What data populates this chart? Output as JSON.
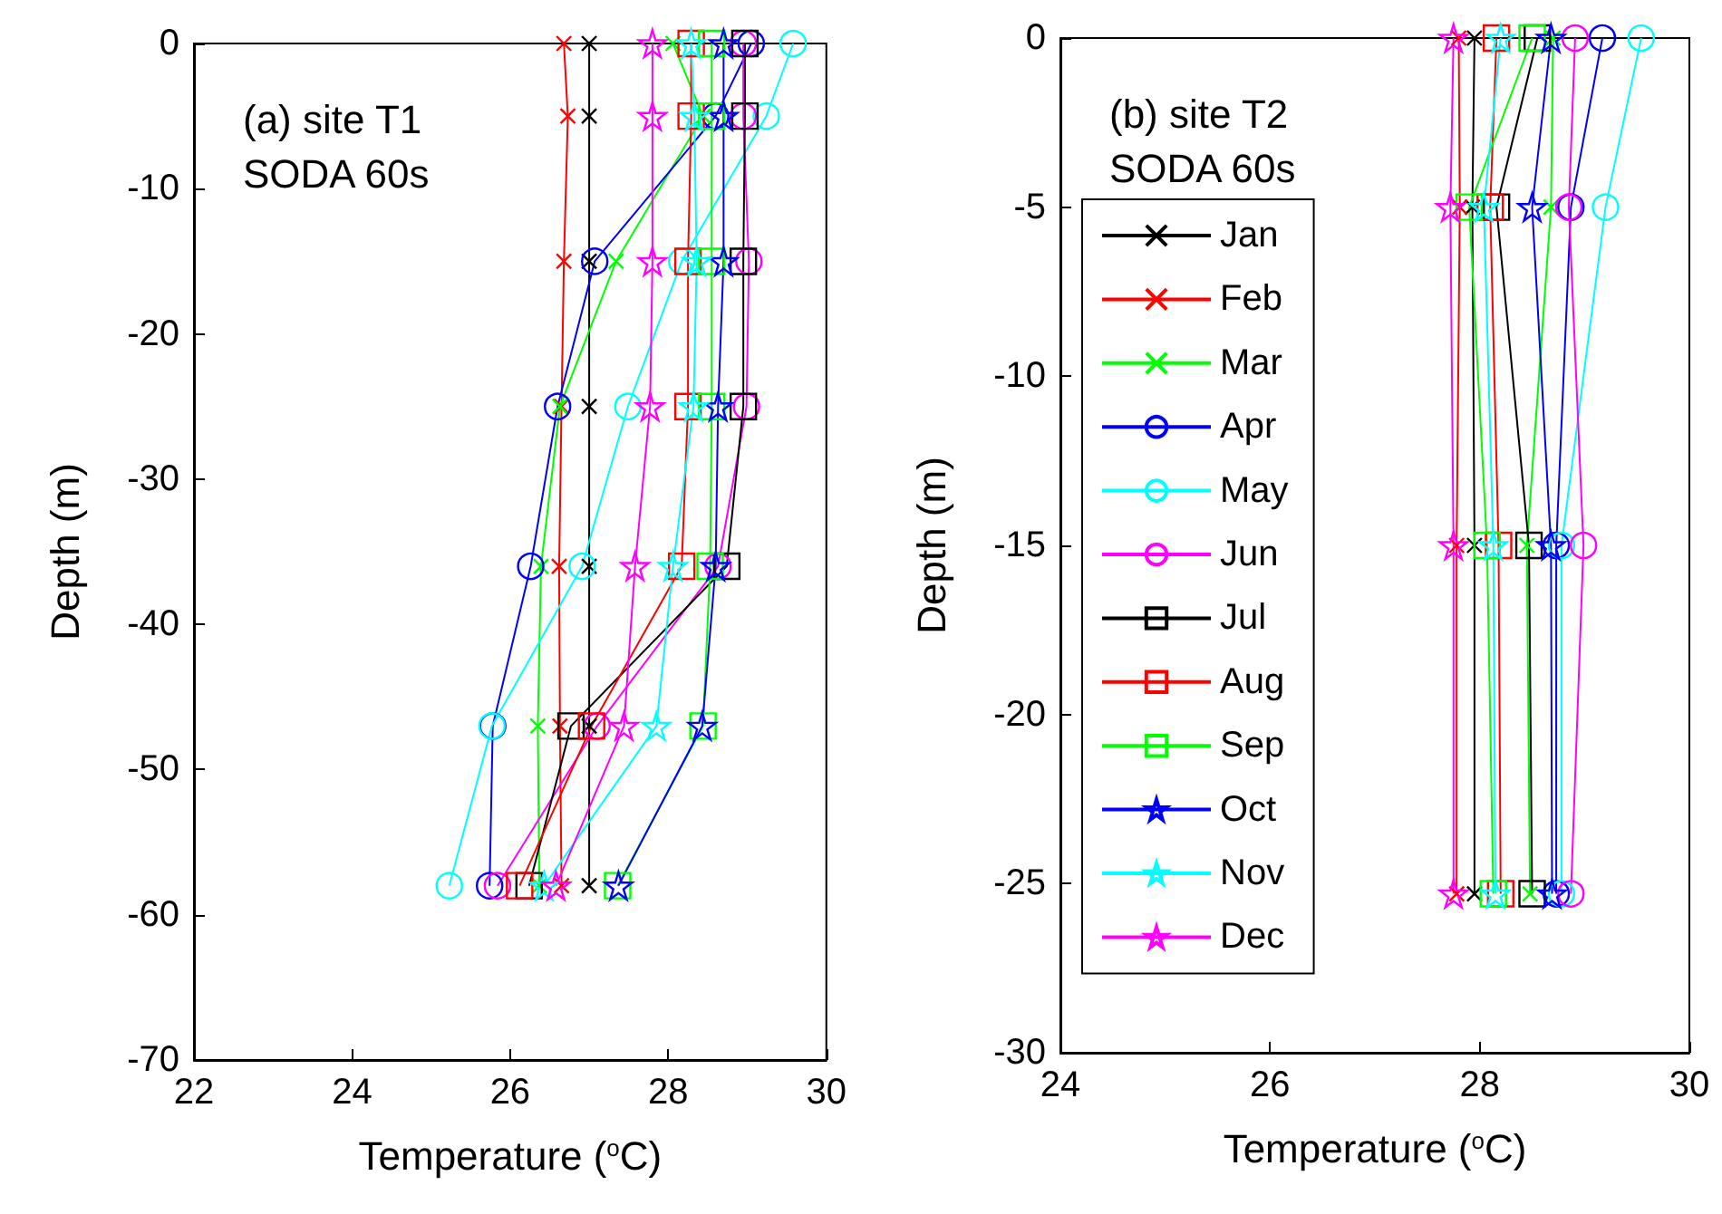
{
  "chart_data": [
    {
      "type": "line",
      "title": "(a) site T1\nSODA 60s",
      "xlabel": "Temperature ($^{o}$C)",
      "ylabel": "Depth (m)",
      "xlim": [
        22,
        30
      ],
      "xticks": [
        22,
        24,
        26,
        28,
        30
      ],
      "ylim": [
        -70,
        0
      ],
      "yticks": [
        0,
        -10,
        -20,
        -30,
        -40,
        -50,
        -60,
        -70
      ],
      "grid": false,
      "legend": false,
      "line_style": "solid",
      "series": [
        {
          "color": "#000000",
          "marker": "cross",
          "x": [
            27.0,
            27.0,
            27.0,
            27.0,
            27.0,
            27.0,
            27.0
          ],
          "values": [
            0,
            -5,
            -15,
            -25,
            -36,
            -47,
            -58
          ]
        },
        {
          "color": "#ff0000",
          "marker": "cross",
          "x": [
            26.68,
            26.73,
            26.68,
            26.65,
            26.62,
            26.63,
            26.65
          ],
          "values": [
            0,
            -5,
            -15,
            -25,
            -36,
            -47,
            -58
          ]
        },
        {
          "color": "#00ff00",
          "marker": "cross",
          "x": [
            28.06,
            28.44,
            27.34,
            26.63,
            26.39,
            26.35,
            26.37
          ],
          "values": [
            0,
            -5,
            -15,
            -25,
            -36,
            -47,
            -58
          ]
        },
        {
          "color": "#0000ff",
          "marker": "circle",
          "x": [
            29.05,
            28.6,
            27.07,
            26.6,
            26.26,
            25.78,
            25.74
          ],
          "values": [
            0,
            -5,
            -15,
            -25,
            -36,
            -47,
            -58
          ]
        },
        {
          "color": "#00ffff",
          "marker": "circle",
          "x": [
            29.58,
            29.24,
            28.17,
            27.49,
            26.91,
            25.77,
            25.23
          ],
          "values": [
            0,
            -5,
            -15,
            -25,
            -36,
            -47,
            -58
          ]
        },
        {
          "color": "#ff00ff",
          "marker": "circle",
          "x": [
            28.95,
            28.95,
            29.02,
            28.99,
            28.63,
            27.1,
            25.84
          ],
          "values": [
            0,
            -5,
            -15,
            -25,
            -36,
            -47,
            -58
          ]
        },
        {
          "color": "#000000",
          "marker": "square",
          "x": [
            28.97,
            28.97,
            28.95,
            28.95,
            28.74,
            26.77,
            26.24
          ],
          "values": [
            0,
            -5,
            -15,
            -25,
            -36,
            -47,
            -58
          ]
        },
        {
          "color": "#ff0000",
          "marker": "square",
          "x": [
            28.29,
            28.29,
            28.25,
            28.25,
            28.17,
            27.03,
            26.12
          ],
          "values": [
            0,
            -5,
            -15,
            -25,
            -36,
            -47,
            -58
          ]
        },
        {
          "color": "#00ff00",
          "marker": "square",
          "x": [
            28.55,
            28.55,
            28.55,
            28.55,
            28.53,
            28.44,
            27.36
          ],
          "values": [
            0,
            -5,
            -15,
            -25,
            -36,
            -47,
            -58
          ]
        },
        {
          "color": "#0000ff",
          "marker": "star",
          "x": [
            28.7,
            28.7,
            28.7,
            28.63,
            28.6,
            28.43,
            27.37
          ],
          "values": [
            0,
            -5,
            -15,
            -25,
            -36,
            -47,
            -58
          ]
        },
        {
          "color": "#00ffff",
          "marker": "star",
          "x": [
            28.29,
            28.33,
            28.36,
            28.32,
            28.06,
            27.85,
            26.43
          ],
          "values": [
            0,
            -5,
            -15,
            -25,
            -36,
            -47,
            -58
          ]
        },
        {
          "color": "#ff00ff",
          "marker": "star",
          "x": [
            27.8,
            27.8,
            27.8,
            27.77,
            27.58,
            27.44,
            26.58
          ],
          "values": [
            0,
            -5,
            -15,
            -25,
            -36,
            -47,
            -58
          ]
        }
      ]
    },
    {
      "type": "line",
      "title": "(b) site T2\nSODA 60s",
      "xlabel": "Temperature ($^{o}$C)",
      "ylabel": "Depth (m)",
      "xlim": [
        24,
        30
      ],
      "xticks": [
        24,
        26,
        28,
        30
      ],
      "ylim": [
        -30,
        0
      ],
      "yticks": [
        0,
        -5,
        -10,
        -15,
        -20,
        -25,
        -30
      ],
      "grid": false,
      "legend": "left",
      "line_style": "solid",
      "series": [
        {
          "name": "Jan",
          "color": "#000000",
          "marker": "cross",
          "x": [
            27.95,
            27.93,
            27.95,
            27.95
          ],
          "values": [
            0,
            -5,
            -15,
            -25.3
          ]
        },
        {
          "name": "Feb",
          "color": "#ff0000",
          "marker": "cross",
          "x": [
            27.8,
            27.81,
            27.78,
            27.78
          ],
          "values": [
            0,
            -5,
            -15,
            -25.3
          ]
        },
        {
          "name": "Mar",
          "color": "#00ff00",
          "marker": "cross",
          "x": [
            28.7,
            28.68,
            28.45,
            28.48
          ],
          "values": [
            0,
            -5,
            -15,
            -25.3
          ]
        },
        {
          "name": "Apr",
          "color": "#0000ff",
          "marker": "circle",
          "x": [
            29.17,
            28.87,
            28.73,
            28.73
          ],
          "values": [
            0,
            -5,
            -15,
            -25.3
          ]
        },
        {
          "name": "May",
          "color": "#00ffff",
          "marker": "circle",
          "x": [
            29.54,
            29.2,
            28.78,
            28.78
          ],
          "values": [
            0,
            -5,
            -15,
            -25.3
          ]
        },
        {
          "name": "Jun",
          "color": "#ff00ff",
          "marker": "circle",
          "x": [
            28.91,
            28.85,
            28.99,
            28.87
          ],
          "values": [
            0,
            -5,
            -15,
            -25.3
          ]
        },
        {
          "name": "Jul",
          "color": "#000000",
          "marker": "square",
          "x": [
            28.55,
            28.16,
            28.47,
            28.5
          ],
          "values": [
            0,
            -5,
            -15,
            -25.3
          ]
        },
        {
          "name": "Aug",
          "color": "#ff0000",
          "marker": "square",
          "x": [
            28.16,
            28.1,
            28.18,
            28.2
          ],
          "values": [
            0,
            -5,
            -15,
            -25.3
          ]
        },
        {
          "name": "Sep",
          "color": "#00ff00",
          "marker": "square",
          "x": [
            28.5,
            27.9,
            28.07,
            28.13
          ],
          "values": [
            0,
            -5,
            -15,
            -25.3
          ]
        },
        {
          "name": "Oct",
          "color": "#0000ff",
          "marker": "star",
          "x": [
            28.68,
            28.5,
            28.68,
            28.69
          ],
          "values": [
            0,
            -5,
            -15,
            -25.3
          ]
        },
        {
          "name": "Nov",
          "color": "#00ffff",
          "marker": "star",
          "x": [
            28.2,
            28.04,
            28.13,
            28.15
          ],
          "values": [
            0,
            -5,
            -15,
            -25.3
          ]
        },
        {
          "name": "Dec",
          "color": "#ff00ff",
          "marker": "star",
          "x": [
            27.75,
            27.72,
            27.75,
            27.75
          ],
          "values": [
            0,
            -5,
            -15,
            -25.3
          ]
        }
      ]
    }
  ]
}
